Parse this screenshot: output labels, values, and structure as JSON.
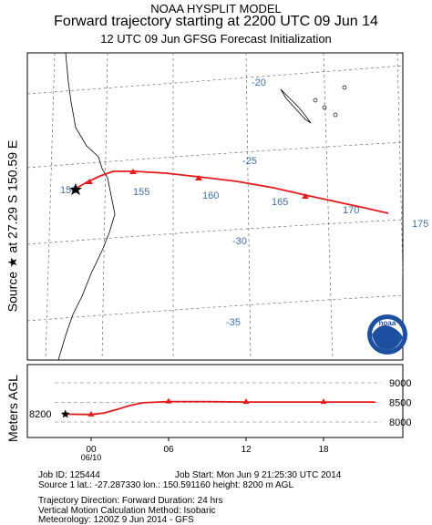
{
  "header": {
    "line1": "NOAA HYSPLIT MODEL",
    "line2": "Forward trajectory starting at 2200 UTC 09 Jun 14",
    "line3": "12 UTC 09 Jun    GFSG  Forecast Initialization"
  },
  "side_label": "Source ★ at   27.29 S   150.59 E",
  "meters_label": "Meters AGL",
  "map": {
    "lat_labels": [
      "-20",
      "-25",
      "-30",
      "-35"
    ],
    "lon_labels": [
      "150",
      "155",
      "160",
      "165",
      "170",
      "175"
    ],
    "logo_text": "noaa"
  },
  "chart_data": {
    "type": "line",
    "trajectory": {
      "source": {
        "lat": -27.29,
        "lon": 150.59
      },
      "points": [
        {
          "lon": 150.59,
          "lat": -27.29
        },
        {
          "lon": 151.5,
          "lat": -26.8
        },
        {
          "lon": 152.8,
          "lat": -26.4
        },
        {
          "lon": 154.2,
          "lat": -25.9
        },
        {
          "lon": 157.0,
          "lat": -25.9
        },
        {
          "lon": 160.5,
          "lat": -26.3
        },
        {
          "lon": 164.5,
          "lat": -27.0
        },
        {
          "lon": 168.0,
          "lat": -27.8
        },
        {
          "lon": 172.0,
          "lat": -28.8
        }
      ],
      "color": "#e41a1c"
    },
    "height": {
      "ylabel": "Meters AGL",
      "yticks": [
        "9000",
        "8500",
        "8000"
      ],
      "xticks": [
        "00",
        "06",
        "12",
        "18"
      ],
      "date_label": "06/10",
      "start_value_label": "8200",
      "x_hours": [
        -2,
        0,
        1,
        2,
        3,
        4,
        6,
        9,
        12,
        15,
        18,
        21,
        22
      ],
      "y_meters": [
        8200,
        8190,
        8230,
        8320,
        8420,
        8490,
        8520,
        8520,
        8510,
        8510,
        8510,
        8510,
        8510
      ]
    }
  },
  "info": {
    "job_id": "Job ID: 125444",
    "job_start": "Job Start: Mon Jun   9 21:25:30 UTC 2014",
    "source": "Source 1     lat.: -27.287330    lon.: 150.591160    height: 8200 m AGL",
    "direction": "Trajectory Direction: Forward      Duration: 24 hrs",
    "vertical": "Vertical Motion Calculation Method:             Isobaric",
    "meteorology": "Meteorology: 1200Z   9 Jun 2014 - GFS"
  }
}
